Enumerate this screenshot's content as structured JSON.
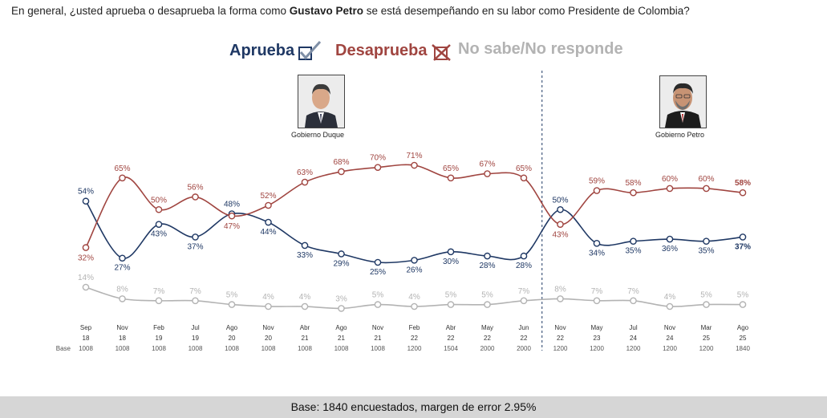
{
  "header": {
    "question_prefix": "En general, ¿usted aprueba o desaprueba la forma como ",
    "question_name": "Gustavo Petro",
    "question_suffix": " se está desempeñando en su labor como Presidente de Colombia?"
  },
  "legend": {
    "approve": "Aprueba",
    "disapprove": "Desaprueba",
    "no_answer": "No sabe/No responde"
  },
  "governments": {
    "duque": "Gobierno Duque",
    "petro": "Gobierno Petro"
  },
  "footer": {
    "text": "Base: 1840 encuestados, margen de error 2.95%"
  },
  "colors": {
    "approve": "#1f3864",
    "disapprove": "#a04540",
    "no_answer": "#b3b3b3"
  },
  "chart_data": {
    "type": "line",
    "categories": [
      [
        "Sep",
        "18"
      ],
      [
        "Nov",
        "18"
      ],
      [
        "Feb",
        "19"
      ],
      [
        "Jul",
        "19"
      ],
      [
        "Ago",
        "20"
      ],
      [
        "Nov",
        "20"
      ],
      [
        "Abr",
        "21"
      ],
      [
        "Ago",
        "21"
      ],
      [
        "Nov",
        "21"
      ],
      [
        "Feb",
        "22"
      ],
      [
        "Abr",
        "22"
      ],
      [
        "May",
        "22"
      ],
      [
        "Jun",
        "22"
      ],
      [
        "Nov",
        "22"
      ],
      [
        "May",
        "23"
      ],
      [
        "Jul",
        "24"
      ],
      [
        "Nov",
        "24"
      ],
      [
        "Mar",
        "25"
      ],
      [
        "Ago",
        "25"
      ]
    ],
    "base_label": "Base",
    "bases": [
      "1008",
      "1008",
      "1008",
      "1008",
      "1008",
      "1008",
      "1008",
      "1008",
      "1008",
      "1200",
      "1504",
      "2000",
      "2000",
      "1200",
      "1200",
      "1200",
      "1200",
      "1200",
      "1840"
    ],
    "series": [
      {
        "name": "Aprueba",
        "key": "approve",
        "values": [
          54,
          27,
          43,
          37,
          48,
          44,
          33,
          29,
          25,
          26,
          30,
          28,
          28,
          50,
          34,
          35,
          36,
          35,
          37
        ]
      },
      {
        "name": "Desaprueba",
        "key": "disapprove",
        "values": [
          32,
          65,
          50,
          56,
          47,
          52,
          63,
          68,
          70,
          71,
          65,
          67,
          65,
          43,
          59,
          58,
          60,
          60,
          58
        ]
      },
      {
        "name": "No sabe/No responde",
        "key": "no_answer",
        "values": [
          14,
          8,
          7,
          7,
          5,
          4,
          4,
          3,
          5,
          4,
          5,
          5,
          7,
          8,
          7,
          7,
          4,
          5,
          5
        ]
      }
    ],
    "government_divider_after": "Jun 22"
  }
}
